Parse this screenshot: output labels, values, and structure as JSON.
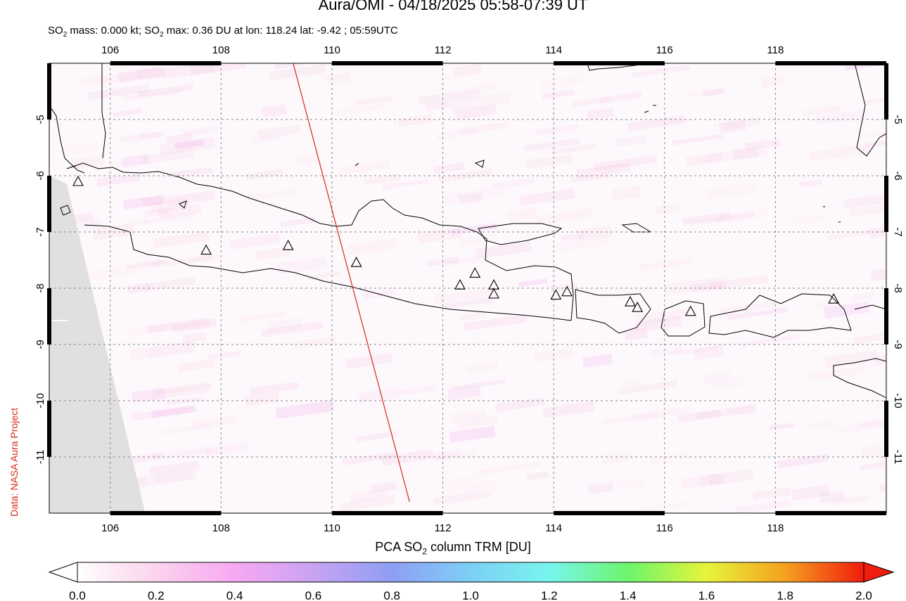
{
  "header": {
    "title": "Aura/OMI - 04/18/2025 05:58-07:39 UT",
    "subtitle_prefix": "SO",
    "subtitle_sub1": "2",
    "subtitle_mid": " mass: 0.000 kt; SO",
    "subtitle_sub2": "2",
    "subtitle_rest": " max: 0.36 DU at lon: 118.24 lat: -9.42 ; 05:59UTC"
  },
  "credit": "Data: NASA Aura Project",
  "map": {
    "lon_ticks": [
      "106",
      "108",
      "110",
      "112",
      "114",
      "116",
      "118"
    ],
    "lat_ticks": [
      "-5",
      "-6",
      "-7",
      "-8",
      "-9",
      "-10",
      "-11"
    ],
    "lon_range": [
      104.9,
      120.0
    ],
    "lat_range": [
      -12.0,
      -4.0
    ],
    "grid": true,
    "orbit_track": {
      "lon": [
        109.3,
        111.4
      ],
      "lat": [
        -4.0,
        -11.8
      ],
      "color": "#d42a1a"
    },
    "volcano_marker": "triangle-icon",
    "volcanoes": [
      {
        "lon": 105.42,
        "lat": -6.1
      },
      {
        "lon": 107.73,
        "lat": -7.32
      },
      {
        "lon": 109.21,
        "lat": -7.24
      },
      {
        "lon": 110.44,
        "lat": -7.54
      },
      {
        "lon": 112.31,
        "lat": -7.94
      },
      {
        "lon": 112.58,
        "lat": -7.73
      },
      {
        "lon": 112.92,
        "lat": -7.94
      },
      {
        "lon": 112.92,
        "lat": -8.1
      },
      {
        "lon": 114.04,
        "lat": -8.12
      },
      {
        "lon": 114.24,
        "lat": -8.06
      },
      {
        "lon": 115.38,
        "lat": -8.24
      },
      {
        "lon": 115.51,
        "lat": -8.34
      },
      {
        "lon": 116.47,
        "lat": -8.41
      },
      {
        "lon": 119.05,
        "lat": -8.19
      }
    ],
    "no_data_color": "#e0e0e0",
    "coast_color": "#000000"
  },
  "colorbar": {
    "label_prefix": "PCA SO",
    "label_sub": "2",
    "label_rest": " column TRM [DU]",
    "ticks": [
      "0.0",
      "0.2",
      "0.4",
      "0.6",
      "0.8",
      "1.0",
      "1.2",
      "1.4",
      "1.6",
      "1.8",
      "2.0"
    ],
    "colors": [
      "#ffffff",
      "#fbd3ec",
      "#f7a8f2",
      "#c9a3f2",
      "#8f9ef5",
      "#7dcff5",
      "#78f5ee",
      "#6cf56c",
      "#e6f53a",
      "#f5a020",
      "#f01c0c"
    ]
  }
}
